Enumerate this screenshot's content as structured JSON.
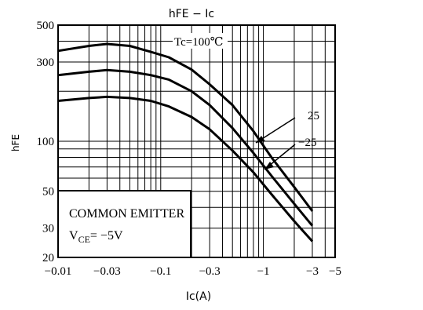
{
  "chart_data": {
    "type": "line",
    "title": "hFE − Ic",
    "xlabel": "Ic(A)",
    "ylabel": "hFE",
    "x_scale": "log",
    "y_scale": "log",
    "xlim": [
      -0.01,
      -5
    ],
    "ylim": [
      20,
      500
    ],
    "x_ticks": [
      {
        "value": -0.01,
        "label": "−0.01"
      },
      {
        "value": -0.03,
        "label": "−0.03"
      },
      {
        "value": -0.1,
        "label": "−0.1"
      },
      {
        "value": -0.3,
        "label": "−0.3"
      },
      {
        "value": -1,
        "label": "−1"
      },
      {
        "value": -3,
        "label": "−3"
      },
      {
        "value": -5,
        "label": "−5"
      }
    ],
    "y_ticks": [
      {
        "value": 500,
        "label": "500"
      },
      {
        "value": 300,
        "label": "300"
      },
      {
        "value": 100,
        "label": "100"
      },
      {
        "value": 50,
        "label": "50"
      },
      {
        "value": 30,
        "label": "30"
      },
      {
        "value": 20,
        "label": "20"
      }
    ],
    "grid": true,
    "series": [
      {
        "name": "Tc=100°C",
        "x": [
          -0.01,
          -0.02,
          -0.03,
          -0.05,
          -0.08,
          -0.12,
          -0.2,
          -0.3,
          -0.5,
          -0.8,
          -1.2,
          -2,
          -3
        ],
        "y": [
          350,
          375,
          385,
          375,
          345,
          320,
          270,
          220,
          165,
          115,
          80,
          53,
          38
        ]
      },
      {
        "name": "25",
        "x": [
          -0.01,
          -0.02,
          -0.03,
          -0.05,
          -0.08,
          -0.12,
          -0.2,
          -0.3,
          -0.5,
          -0.8,
          -1.2,
          -2,
          -3
        ],
        "y": [
          250,
          262,
          268,
          262,
          250,
          235,
          200,
          165,
          120,
          85,
          62,
          42,
          31
        ]
      },
      {
        "name": "−25",
        "x": [
          -0.01,
          -0.02,
          -0.03,
          -0.05,
          -0.08,
          -0.12,
          -0.2,
          -0.3,
          -0.5,
          -0.8,
          -1.2,
          -2,
          -3
        ],
        "y": [
          175,
          182,
          185,
          182,
          175,
          162,
          140,
          118,
          88,
          65,
          48,
          33,
          25
        ]
      }
    ],
    "annotations": [
      {
        "label": "Tc=100°C",
        "text": "Tc=100℃"
      },
      {
        "label": "25",
        "text": "25"
      },
      {
        "label": "-25",
        "text": "−25"
      }
    ],
    "legend_box": {
      "line1": "COMMON EMITTER",
      "line2_main": "V",
      "line2_sub": "CE",
      "line2_tail": "= −5V"
    }
  }
}
